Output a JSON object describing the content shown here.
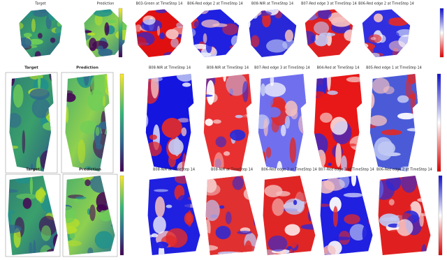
{
  "rows": [
    {
      "target": "Target",
      "prediction": "Prediction",
      "maps": [
        "B03-Green at TimeStep 14",
        "B06-Red edge 2 at TimeStep 14",
        "B08-NIR at TimeStep 14",
        "B07-Red edge 3 at TimeStep 14",
        "B06-Red edge 2 at TimeStep 14"
      ]
    },
    {
      "target": "Target",
      "prediction": "Prediction",
      "maps": [
        "B08-NIR at TimeStep 14",
        "B08-NIR at TimeStep 14",
        "B07-Red edge 3 at TimeStep 14",
        "B04-Red at TimeStep 14",
        "B05-Red edge 1 at TimeStep 14"
      ]
    },
    {
      "target": "Target",
      "prediction": "Prediction",
      "maps": [
        "B08-NIR at TimeStep 14",
        "B08-NIR at TimeStep 14",
        "B06-Red edge 2 at TimeStep 14",
        "B07-Red edge 3 at TimeStep 14",
        "B06-Red edge 2 at TimeStep 14"
      ]
    }
  ]
}
